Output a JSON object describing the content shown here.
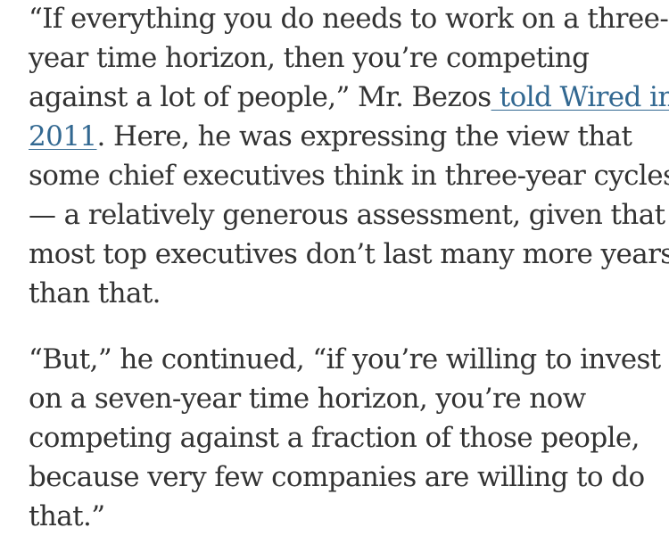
{
  "article": {
    "paragraphs": [
      {
        "line_1": "“If everything you do needs to work on a three-",
        "line_2": "year time horizon, then you’re competing",
        "line_3_before_link": "against a lot of people,” Mr. Bezos",
        "link_part_1": " told Wired in",
        "link_part_2": "2011",
        "line_4_after_link": ". Here, he was expressing the view that",
        "line_5": "some chief executives think in three-year cycles",
        "line_6": "— a relatively generous assessment, given that",
        "line_7": "most top executives don’t last many more years",
        "line_8": "than that."
      },
      {
        "line_1": "“But,” he continued, “if you’re willing to invest",
        "line_2": "on a seven-year time horizon, you’re now",
        "line_3": "competing against a fraction of those people,",
        "line_4": "because very few companies are willing to do",
        "line_5": "that.”"
      }
    ],
    "link_color": "#326891",
    "text_color": "#333333"
  }
}
